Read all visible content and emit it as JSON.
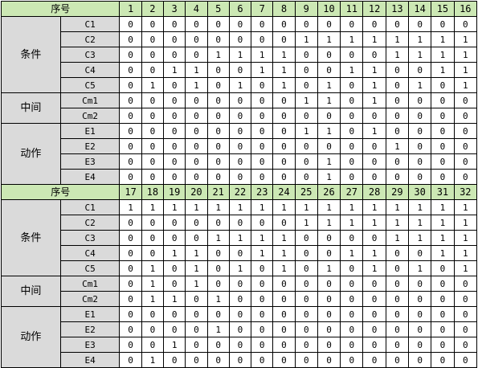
{
  "blocks": [
    {
      "seq_label": "序号",
      "numbers": [
        "1",
        "2",
        "3",
        "4",
        "5",
        "6",
        "7",
        "8",
        "9",
        "10",
        "11",
        "12",
        "13",
        "14",
        "15",
        "16"
      ],
      "groups": [
        {
          "name": "条件",
          "rows": [
            {
              "label": "C1",
              "values": [
                "0",
                "0",
                "0",
                "0",
                "0",
                "0",
                "0",
                "0",
                "0",
                "0",
                "0",
                "0",
                "0",
                "0",
                "0",
                "0"
              ]
            },
            {
              "label": "C2",
              "values": [
                "0",
                "0",
                "0",
                "0",
                "0",
                "0",
                "0",
                "0",
                "1",
                "1",
                "1",
                "1",
                "1",
                "1",
                "1",
                "1"
              ]
            },
            {
              "label": "C3",
              "values": [
                "0",
                "0",
                "0",
                "0",
                "1",
                "1",
                "1",
                "1",
                "0",
                "0",
                "0",
                "0",
                "1",
                "1",
                "1",
                "1"
              ]
            },
            {
              "label": "C4",
              "values": [
                "0",
                "0",
                "1",
                "1",
                "0",
                "0",
                "1",
                "1",
                "0",
                "0",
                "1",
                "1",
                "0",
                "0",
                "1",
                "1"
              ]
            },
            {
              "label": "C5",
              "values": [
                "0",
                "1",
                "0",
                "1",
                "0",
                "1",
                "0",
                "1",
                "0",
                "1",
                "0",
                "1",
                "0",
                "1",
                "0",
                "1"
              ]
            }
          ]
        },
        {
          "name": "中间",
          "rows": [
            {
              "label": "Cm1",
              "values": [
                "0",
                "0",
                "0",
                "0",
                "0",
                "0",
                "0",
                "0",
                "1",
                "1",
                "0",
                "1",
                "0",
                "0",
                "0",
                "0"
              ]
            },
            {
              "label": "Cm2",
              "values": [
                "0",
                "0",
                "0",
                "0",
                "0",
                "0",
                "0",
                "0",
                "0",
                "0",
                "0",
                "0",
                "0",
                "0",
                "0",
                "0"
              ]
            }
          ]
        },
        {
          "name": "动作",
          "rows": [
            {
              "label": "E1",
              "values": [
                "0",
                "0",
                "0",
                "0",
                "0",
                "0",
                "0",
                "0",
                "1",
                "1",
                "0",
                "1",
                "0",
                "0",
                "0",
                "0"
              ]
            },
            {
              "label": "E2",
              "values": [
                "0",
                "0",
                "0",
                "0",
                "0",
                "0",
                "0",
                "0",
                "0",
                "0",
                "0",
                "0",
                "1",
                "0",
                "0",
                "0"
              ]
            },
            {
              "label": "E3",
              "values": [
                "0",
                "0",
                "0",
                "0",
                "0",
                "0",
                "0",
                "0",
                "0",
                "1",
                "0",
                "0",
                "0",
                "0",
                "0",
                "0"
              ]
            },
            {
              "label": "E4",
              "values": [
                "0",
                "0",
                "0",
                "0",
                "0",
                "0",
                "0",
                "0",
                "0",
                "1",
                "0",
                "0",
                "0",
                "0",
                "0",
                "0"
              ]
            }
          ]
        }
      ]
    },
    {
      "seq_label": "序号",
      "numbers": [
        "17",
        "18",
        "19",
        "20",
        "21",
        "22",
        "23",
        "24",
        "25",
        "26",
        "27",
        "28",
        "29",
        "30",
        "31",
        "32"
      ],
      "groups": [
        {
          "name": "条件",
          "rows": [
            {
              "label": "C1",
              "values": [
                "1",
                "1",
                "1",
                "1",
                "1",
                "1",
                "1",
                "1",
                "1",
                "1",
                "1",
                "1",
                "1",
                "1",
                "1",
                "1"
              ]
            },
            {
              "label": "C2",
              "values": [
                "0",
                "0",
                "0",
                "0",
                "0",
                "0",
                "0",
                "0",
                "1",
                "1",
                "1",
                "1",
                "1",
                "1",
                "1",
                "1"
              ]
            },
            {
              "label": "C3",
              "values": [
                "0",
                "0",
                "0",
                "0",
                "1",
                "1",
                "1",
                "1",
                "0",
                "0",
                "0",
                "0",
                "1",
                "1",
                "1",
                "1"
              ]
            },
            {
              "label": "C4",
              "values": [
                "0",
                "0",
                "1",
                "1",
                "0",
                "0",
                "1",
                "1",
                "0",
                "0",
                "1",
                "1",
                "0",
                "0",
                "1",
                "1"
              ]
            },
            {
              "label": "C5",
              "values": [
                "0",
                "1",
                "0",
                "1",
                "0",
                "1",
                "0",
                "1",
                "0",
                "1",
                "0",
                "1",
                "0",
                "1",
                "0",
                "1"
              ]
            }
          ]
        },
        {
          "name": "中间",
          "rows": [
            {
              "label": "Cm1",
              "values": [
                "0",
                "1",
                "0",
                "1",
                "0",
                "0",
                "0",
                "0",
                "0",
                "0",
                "0",
                "0",
                "0",
                "0",
                "0",
                "0"
              ]
            },
            {
              "label": "Cm2",
              "values": [
                "0",
                "1",
                "1",
                "0",
                "1",
                "0",
                "0",
                "0",
                "0",
                "0",
                "0",
                "0",
                "0",
                "0",
                "0",
                "0"
              ]
            }
          ]
        },
        {
          "name": "动作",
          "rows": [
            {
              "label": "E1",
              "values": [
                "0",
                "0",
                "0",
                "0",
                "0",
                "0",
                "0",
                "0",
                "0",
                "0",
                "0",
                "0",
                "0",
                "0",
                "0",
                "0"
              ]
            },
            {
              "label": "E2",
              "values": [
                "0",
                "0",
                "0",
                "0",
                "1",
                "0",
                "0",
                "0",
                "0",
                "0",
                "0",
                "0",
                "0",
                "0",
                "0",
                "0"
              ]
            },
            {
              "label": "E3",
              "values": [
                "0",
                "0",
                "1",
                "0",
                "0",
                "0",
                "0",
                "0",
                "0",
                "0",
                "0",
                "0",
                "0",
                "0",
                "0",
                "0"
              ]
            },
            {
              "label": "E4",
              "values": [
                "0",
                "1",
                "0",
                "0",
                "0",
                "0",
                "0",
                "0",
                "0",
                "0",
                "0",
                "0",
                "0",
                "0",
                "0",
                "0"
              ]
            }
          ]
        }
      ]
    }
  ],
  "colors": {
    "header_bg": "#cce8b4",
    "label_bg": "#dadada",
    "cell_bg": "#ffffff",
    "border": "#000000"
  }
}
